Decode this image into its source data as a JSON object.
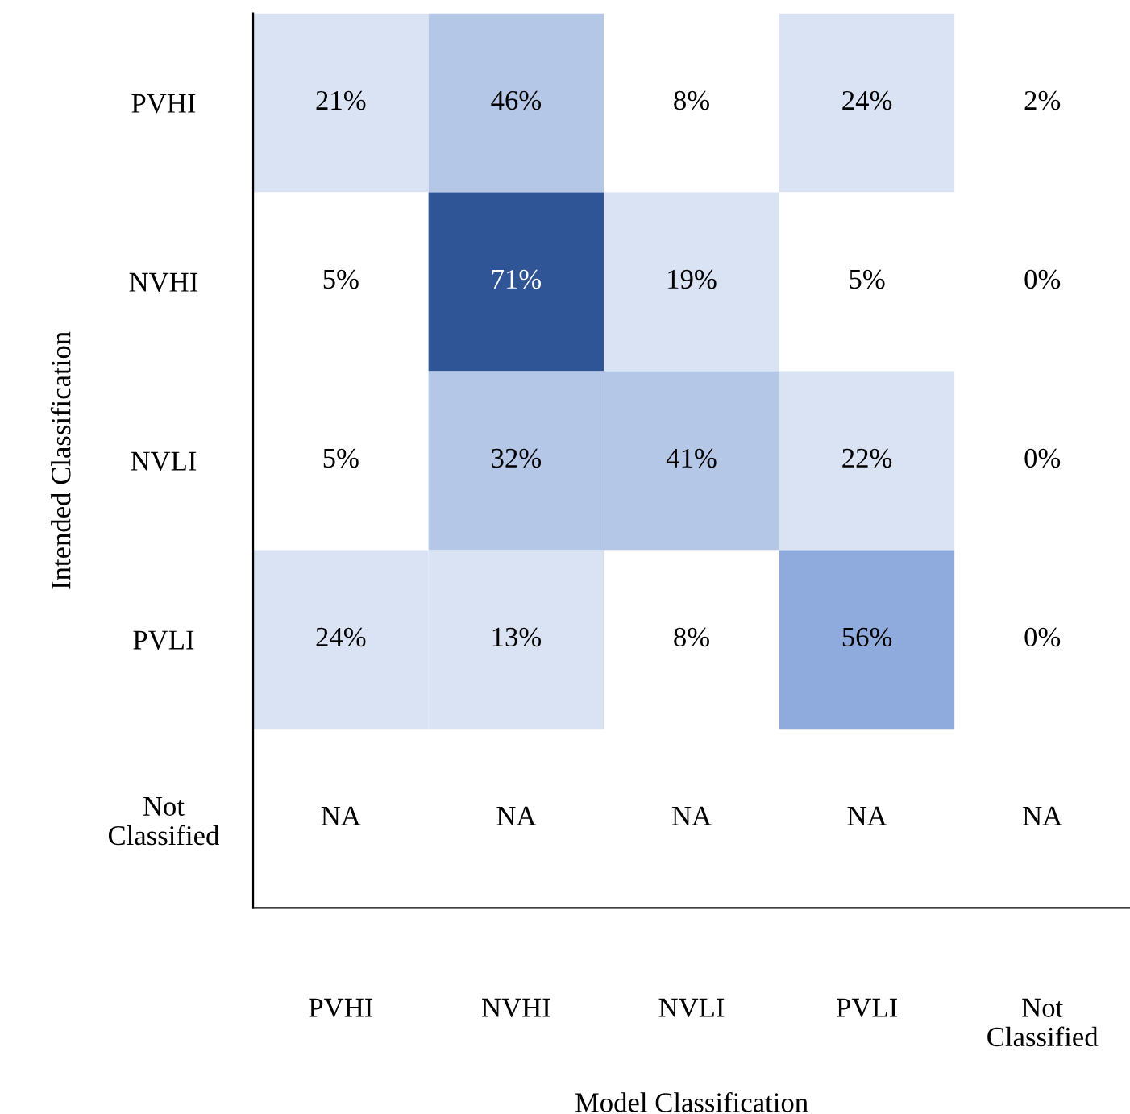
{
  "chart_data": {
    "type": "heatmap",
    "xlabel": "Model Classification",
    "ylabel": "Intended Classification",
    "categories": [
      "PVHI",
      "NVHI",
      "NVLI",
      "PVLI",
      "Not\nClassified"
    ],
    "y_categories": [
      "PVHI",
      "NVHI",
      "NVLI",
      "PVLI",
      "Not\nClassified"
    ],
    "cells": [
      [
        21,
        46,
        8,
        24,
        2
      ],
      [
        5,
        71,
        19,
        5,
        0
      ],
      [
        5,
        32,
        41,
        22,
        0
      ],
      [
        24,
        13,
        8,
        56,
        0
      ],
      [
        null,
        null,
        null,
        null,
        null
      ]
    ],
    "cell_labels": [
      [
        "21%",
        "46%",
        "8%",
        "24%",
        "2%"
      ],
      [
        "5%",
        "71%",
        "19%",
        "5%",
        "0%"
      ],
      [
        "5%",
        "32%",
        "41%",
        "22%",
        "0%"
      ],
      [
        "24%",
        "13%",
        "8%",
        "56%",
        "0%"
      ],
      [
        "NA",
        "NA",
        "NA",
        "NA",
        "NA"
      ]
    ],
    "grid": false
  }
}
